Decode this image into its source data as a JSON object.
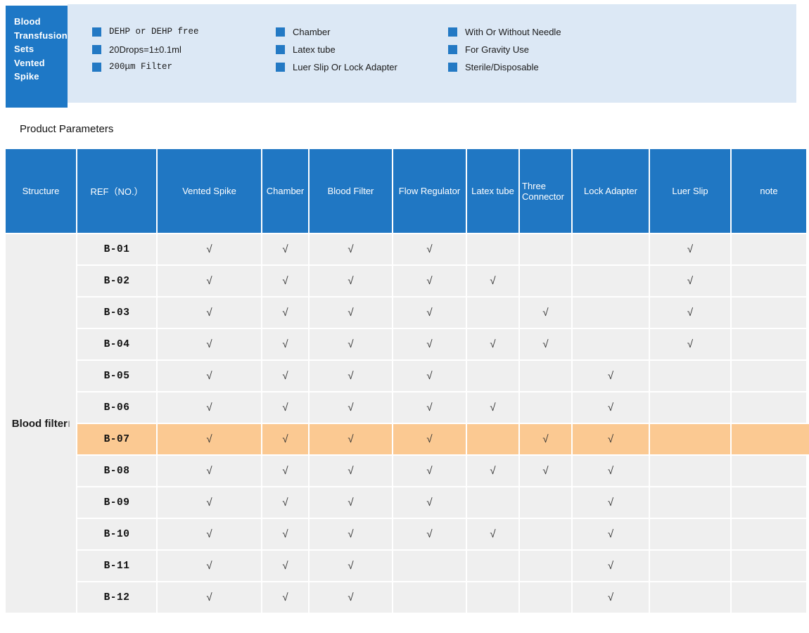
{
  "banner": {
    "title_lines": [
      "Blood",
      "Transfusion",
      "Sets",
      "Vented",
      "Spike"
    ],
    "columns": [
      {
        "items": [
          "DEHP or DEHP free",
          "20Drops=1±0.1ml",
          "200μm Filter"
        ]
      },
      {
        "items": [
          "Chamber",
          "Latex tube",
          "Luer Slip Or Lock Adapter"
        ]
      },
      {
        "items": [
          "With Or Without Needle",
          "For Gravity Use",
          "Sterile/Disposable"
        ]
      }
    ]
  },
  "section": {
    "title": "Product Parameters"
  },
  "table": {
    "columns": [
      "Structure",
      "REF（NO.）",
      "Vented Spike",
      "Chamber",
      "Blood Filter",
      "Flow Regulator",
      "Latex tube",
      "Three Connector",
      "Lock Adapter",
      "Luer Slip",
      "note"
    ],
    "structure_label": "Blood filter",
    "structure_superscript": "|",
    "check_glyph": "√",
    "highlight_ref": "B-07",
    "rows": [
      {
        "ref": "B-01",
        "checks": [
          1,
          1,
          1,
          1,
          0,
          0,
          0,
          1,
          0
        ]
      },
      {
        "ref": "B-02",
        "checks": [
          1,
          1,
          1,
          1,
          1,
          0,
          0,
          1,
          0
        ]
      },
      {
        "ref": "B-03",
        "checks": [
          1,
          1,
          1,
          1,
          0,
          1,
          0,
          1,
          0
        ]
      },
      {
        "ref": "B-04",
        "checks": [
          1,
          1,
          1,
          1,
          1,
          1,
          0,
          1,
          0
        ]
      },
      {
        "ref": "B-05",
        "checks": [
          1,
          1,
          1,
          1,
          0,
          0,
          1,
          0,
          0
        ]
      },
      {
        "ref": "B-06",
        "checks": [
          1,
          1,
          1,
          1,
          1,
          0,
          1,
          0,
          0
        ]
      },
      {
        "ref": "B-07",
        "checks": [
          1,
          1,
          1,
          1,
          0,
          1,
          1,
          0,
          0
        ]
      },
      {
        "ref": "B-08",
        "checks": [
          1,
          1,
          1,
          1,
          1,
          1,
          1,
          0,
          0
        ]
      },
      {
        "ref": "B-09",
        "checks": [
          1,
          1,
          1,
          1,
          0,
          0,
          1,
          0,
          0
        ]
      },
      {
        "ref": "B-10",
        "checks": [
          1,
          1,
          1,
          1,
          1,
          0,
          1,
          0,
          0
        ]
      },
      {
        "ref": "B-11",
        "checks": [
          1,
          1,
          1,
          0,
          0,
          0,
          1,
          0,
          0
        ]
      },
      {
        "ref": "B-12",
        "checks": [
          1,
          1,
          1,
          0,
          0,
          0,
          1,
          0,
          0
        ]
      }
    ]
  },
  "colors": {
    "header_blue": "#2077c3",
    "brand_blue": "#1e78c6",
    "bullet_blue": "#2379c4",
    "banner_bg": "#dce8f5",
    "row_gray": "#efefef",
    "highlight_orange": "#fbc992",
    "check_color": "#333333"
  }
}
